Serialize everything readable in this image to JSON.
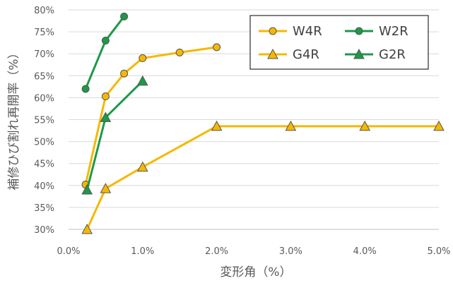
{
  "chart_data": {
    "type": "line",
    "xlabel": "変形角（%）",
    "ylabel": "補修ひび割れ再開率（%）",
    "xlim": [
      0,
      5
    ],
    "ylim": [
      30,
      80
    ],
    "x_ticks": [
      0,
      1,
      2,
      3,
      4,
      5
    ],
    "x_tick_labels": [
      "0.0%",
      "1.0%",
      "2.0%",
      "3.0%",
      "4.0%",
      "5.0%"
    ],
    "y_ticks": [
      30,
      35,
      40,
      45,
      50,
      55,
      60,
      65,
      70,
      75,
      80
    ],
    "y_tick_labels": [
      "30%",
      "35%",
      "40%",
      "45%",
      "50%",
      "55%",
      "60%",
      "65%",
      "70%",
      "75%",
      "80%"
    ],
    "grid": "horizontal",
    "legend_position": "top-right",
    "series": [
      {
        "name": "W4R",
        "color": "#f5b800",
        "marker": "circle",
        "x": [
          0.23,
          0.5,
          0.75,
          1.0,
          1.5,
          2.0
        ],
        "y": [
          40.2,
          60.3,
          65.5,
          69.0,
          70.3,
          71.5
        ]
      },
      {
        "name": "W2R",
        "color": "#1b9a48",
        "marker": "circle",
        "x": [
          0.23,
          0.5,
          0.75
        ],
        "y": [
          62.0,
          73.0,
          78.5
        ]
      },
      {
        "name": "G4R",
        "color": "#f5b800",
        "marker": "triangle",
        "x": [
          0.25,
          0.5,
          1.0,
          2.0,
          3.0,
          4.0,
          5.0
        ],
        "y": [
          30.0,
          39.3,
          44.2,
          53.5,
          53.5,
          53.5,
          53.5
        ]
      },
      {
        "name": "G2R",
        "color": "#1b9a48",
        "marker": "triangle",
        "x": [
          0.25,
          0.5,
          1.0
        ],
        "y": [
          39.0,
          55.5,
          63.8
        ]
      }
    ]
  }
}
